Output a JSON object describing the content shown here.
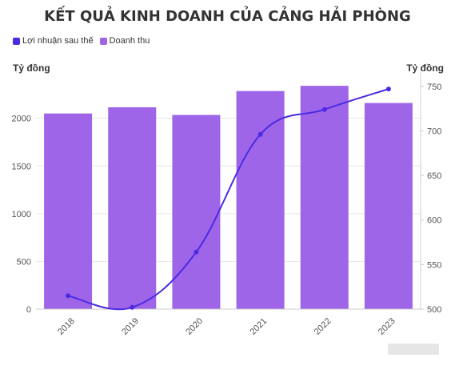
{
  "chart_data": {
    "type": "bar+line",
    "title": "KẾT QUẢ KINH DOANH CỦA CẢNG HẢI PHÒNG",
    "categories": [
      "2018",
      "2019",
      "2020",
      "2021",
      "2022",
      "2023"
    ],
    "series": [
      {
        "name": "Lợi nhuận sau thế",
        "type": "line",
        "axis": "right",
        "color": "#4b2be3",
        "values": [
          515,
          502,
          564,
          696,
          724,
          747
        ]
      },
      {
        "name": "Doanh thu",
        "type": "bar",
        "axis": "left",
        "color": "#9e65e8",
        "values": [
          2050,
          2115,
          2035,
          2285,
          2340,
          2160
        ]
      }
    ],
    "left_axis": {
      "label": "Tỷ đồng",
      "ylim": [
        0,
        2400
      ],
      "ticks": [
        0,
        500,
        1000,
        1500,
        2000
      ]
    },
    "right_axis": {
      "label": "Tỷ đồng",
      "ylim": [
        500,
        757
      ],
      "ticks": [
        500,
        550,
        600,
        650,
        700,
        750
      ]
    },
    "legend_position": "top-left",
    "grid": true
  }
}
